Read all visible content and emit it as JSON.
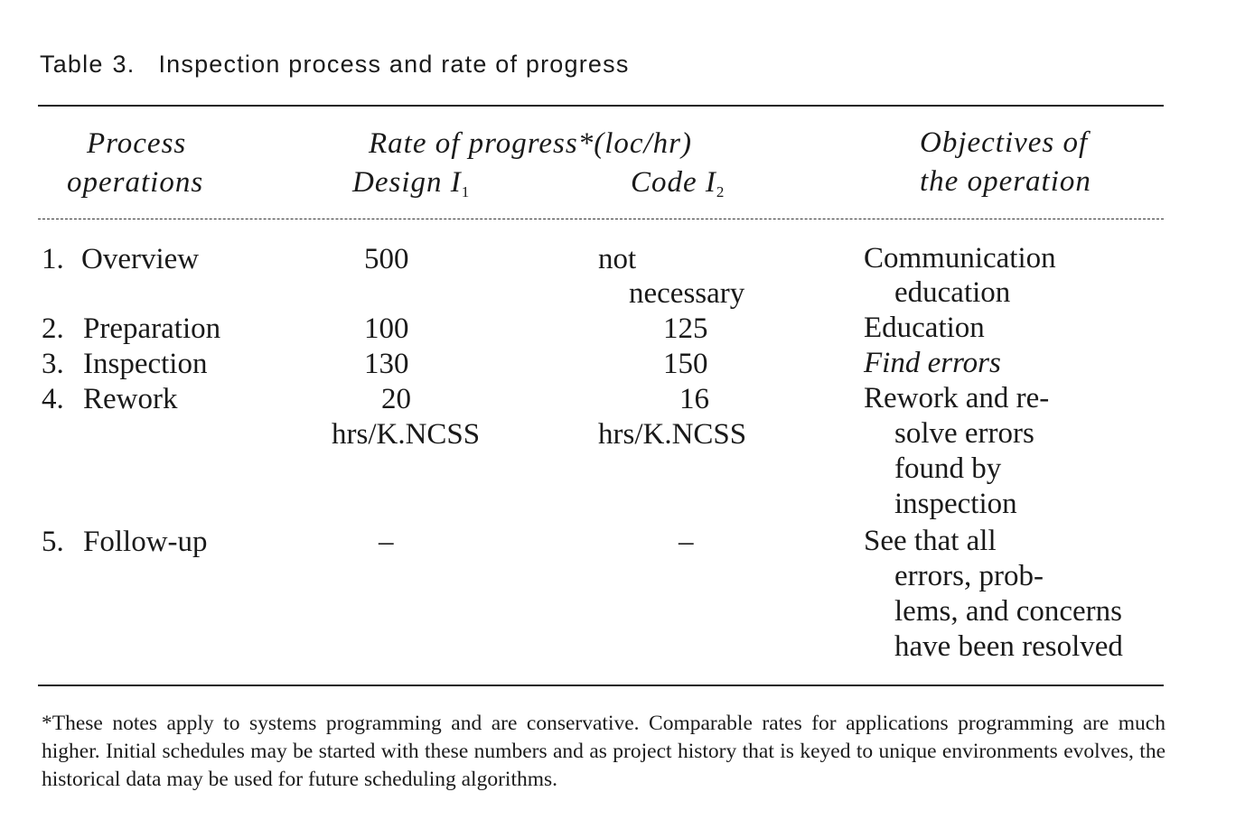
{
  "caption": {
    "label": "Table",
    "number": "3.",
    "title": "Inspection process and rate of progress"
  },
  "headers": {
    "process": [
      "Process",
      "operations"
    ],
    "rate_group": "Rate of progress*(loc/hr)",
    "design": "Design I",
    "design_sub": "1",
    "code": "Code I",
    "code_sub": "2",
    "objectives": [
      "Objectives of",
      "the operation"
    ]
  },
  "rows": [
    {
      "num": "1.",
      "op": "Overview",
      "design": [
        "500"
      ],
      "code": [
        "not",
        "necessary"
      ],
      "objectives": [
        "Communication",
        "education"
      ],
      "objectives_italic": false
    },
    {
      "num": "2.",
      "op": "Preparation",
      "design": [
        "100"
      ],
      "code": [
        "125"
      ],
      "objectives": [
        "Education"
      ],
      "objectives_italic": false
    },
    {
      "num": "3.",
      "op": "Inspection",
      "design": [
        "130"
      ],
      "code": [
        "150"
      ],
      "objectives": [
        "Find errors"
      ],
      "objectives_italic": true
    },
    {
      "num": "4.",
      "op": "Rework",
      "design": [
        "20",
        "hrs/K.NCSS"
      ],
      "code": [
        "16",
        "hrs/K.NCSS"
      ],
      "objectives": [
        "Rework and re-",
        "solve errors",
        "found by",
        "inspection"
      ],
      "objectives_italic": false
    },
    {
      "num": "5.",
      "op": "Follow-up",
      "design": [
        "–"
      ],
      "code": [
        "–"
      ],
      "objectives": [
        "See that all",
        "errors, prob-",
        "lems, and concerns",
        "have been resolved"
      ],
      "objectives_italic": false
    }
  ],
  "footnote": "*These notes apply to systems programming and are conservative. Comparable rates for applications programming are much higher. Initial schedules may be started with these numbers and as project history that is keyed to unique environments evolves, the historical data may be used for future scheduling algorithms."
}
